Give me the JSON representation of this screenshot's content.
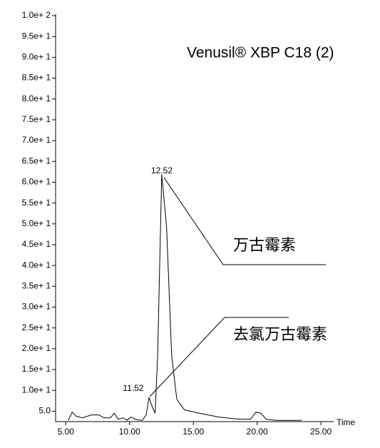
{
  "chart_data": {
    "type": "line",
    "title": "Venusil® XBP C18 (2)",
    "x_label": "Time",
    "x": [
      5.2,
      5.5,
      5.8,
      6.3,
      7.0,
      7.6,
      8.0,
      8.5,
      8.8,
      9.1,
      9.5,
      9.8,
      10.1,
      10.5,
      11.0,
      11.3,
      11.52,
      11.8,
      12.0,
      12.2,
      12.52,
      12.9,
      13.3,
      13.7,
      14.3,
      15.5,
      17.0,
      18.5,
      19.5,
      19.9,
      20.3,
      20.7,
      21.5,
      23.5
    ],
    "series": [
      {
        "color": "#000000",
        "values": [
          2.8,
          4.8,
          3.8,
          3.4,
          4.1,
          4.1,
          3.4,
          3.4,
          4.5,
          3.1,
          3.4,
          2.8,
          3.6,
          3.0,
          2.8,
          4.1,
          8.3,
          5.9,
          4.5,
          18.3,
          61.9,
          49.3,
          18.3,
          7.9,
          5.3,
          4.5,
          3.6,
          3.1,
          3.1,
          4.8,
          4.5,
          3.1,
          2.8,
          2.8
        ]
      }
    ],
    "xlim": [
      4.2,
      26
    ],
    "ylim": [
      2.5,
      100
    ],
    "xticks": [
      {
        "value": 5,
        "label": "5.00"
      },
      {
        "value": 10,
        "label": "10.00"
      },
      {
        "value": 15,
        "label": "15.00"
      },
      {
        "value": 20,
        "label": "20.00"
      },
      {
        "value": 25,
        "label": "25.00"
      }
    ],
    "yticks": [
      {
        "value": 5,
        "label": "5.0"
      },
      {
        "value": 10,
        "label": "1.0e+ 1"
      },
      {
        "value": 15,
        "label": "1.5e+ 1"
      },
      {
        "value": 20,
        "label": "2.0e+ 1"
      },
      {
        "value": 25,
        "label": "2.5e+ 1"
      },
      {
        "value": 30,
        "label": "3.0e+ 1"
      },
      {
        "value": 35,
        "label": "3.5e+ 1"
      },
      {
        "value": 40,
        "label": "4.0e+ 1"
      },
      {
        "value": 45,
        "label": "4.5e+ 1"
      },
      {
        "value": 50,
        "label": "5.0e+ 1"
      },
      {
        "value": 55,
        "label": "5.5e+ 1"
      },
      {
        "value": 60,
        "label": "6.0e+ 1"
      },
      {
        "value": 65,
        "label": "6.5e+ 1"
      },
      {
        "value": 70,
        "label": "7.0e+ 1"
      },
      {
        "value": 75,
        "label": "7.5e+ 1"
      },
      {
        "value": 80,
        "label": "8.0e+ 1"
      },
      {
        "value": 85,
        "label": "8.5e+ 1"
      },
      {
        "value": 90,
        "label": "9.0e+ 1"
      },
      {
        "value": 95,
        "label": "9.5e+ 1"
      },
      {
        "value": 100,
        "label": "1.0e+ 2"
      }
    ],
    "peaks": [
      {
        "x": 12.52,
        "name": "万古霉素"
      },
      {
        "x": 11.52,
        "name": "去氯万古霉素"
      }
    ]
  }
}
